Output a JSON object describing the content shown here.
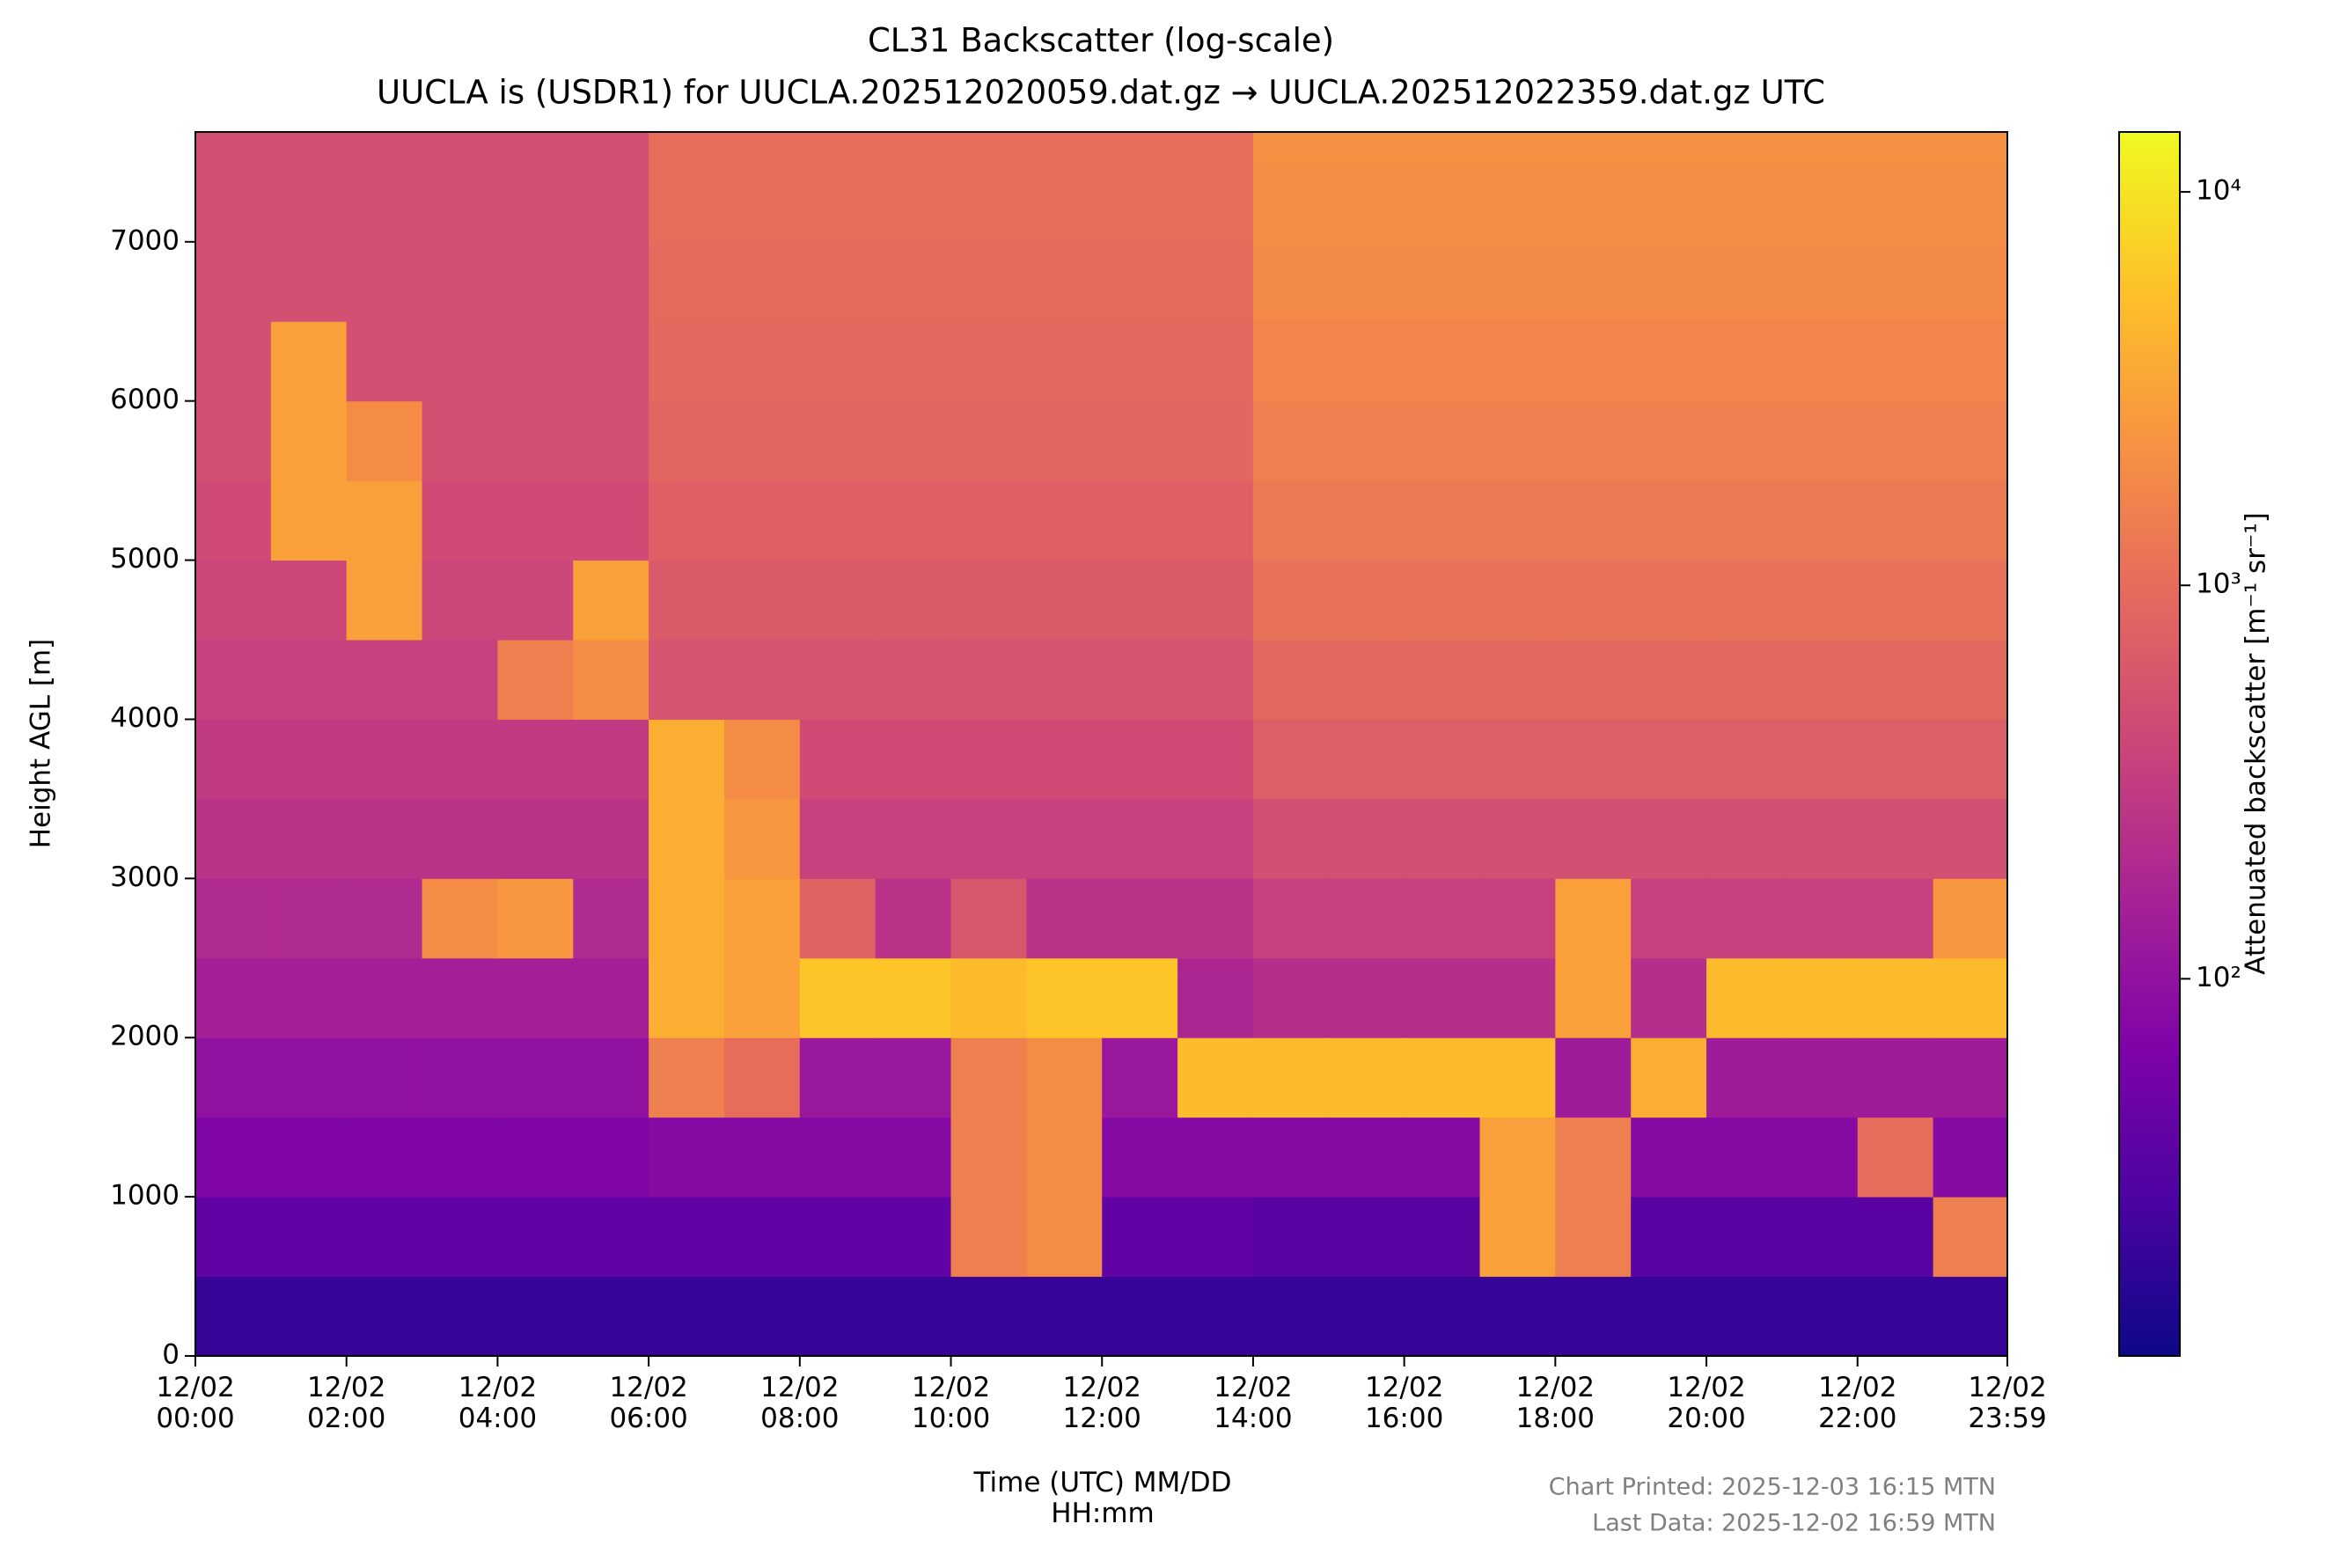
{
  "chart_data": {
    "type": "heatmap",
    "title": "CL31 Backscatter (log-scale)",
    "subtitle": "UUCLA is (USDR1) for UUCLA.202512020059.dat.gz → UUCLA.202512022359.dat.gz UTC",
    "x_label": "Time (UTC) MM/DD\nHH:mm",
    "y_label": "Height AGL [m]",
    "colorbar_label": "Attenuated backscatter [m⁻¹ sr⁻¹]",
    "annotations": [
      "Chart Printed: 2025-12-03 16:15 MTN",
      "Last Data: 2025-12-02 16:59 MTN"
    ],
    "colormap": "plasma",
    "color_scale": "log",
    "xlim": [
      0,
      23.983
    ],
    "xticks": [
      {
        "value": 0,
        "label": "12/02\n00:00"
      },
      {
        "value": 2,
        "label": "12/02\n02:00"
      },
      {
        "value": 4,
        "label": "12/02\n04:00"
      },
      {
        "value": 6,
        "label": "12/02\n06:00"
      },
      {
        "value": 8,
        "label": "12/02\n08:00"
      },
      {
        "value": 10,
        "label": "12/02\n10:00"
      },
      {
        "value": 12,
        "label": "12/02\n12:00"
      },
      {
        "value": 14,
        "label": "12/02\n14:00"
      },
      {
        "value": 16,
        "label": "12/02\n16:00"
      },
      {
        "value": 18,
        "label": "12/02\n18:00"
      },
      {
        "value": 20,
        "label": "12/02\n20:00"
      },
      {
        "value": 22,
        "label": "12/02\n22:00"
      },
      {
        "value": 23.983,
        "label": "12/02\n23:59"
      }
    ],
    "ylim": [
      0,
      7690
    ],
    "yticks": [
      0,
      1000,
      2000,
      3000,
      4000,
      5000,
      6000,
      7000
    ],
    "clim": [
      11,
      14200
    ],
    "cticks": [
      {
        "value": 100,
        "label": "10²"
      },
      {
        "value": 1000,
        "label": "10³"
      },
      {
        "value": 10000,
        "label": "10⁴"
      }
    ],
    "x_bins": [
      0,
      1,
      2,
      3,
      4,
      5,
      6,
      7,
      8,
      9,
      10,
      11,
      12,
      13,
      14,
      15,
      16,
      17,
      18,
      19,
      20,
      21,
      22,
      23,
      24
    ],
    "y_bins": [
      0,
      500,
      1000,
      1500,
      2000,
      2500,
      3000,
      3500,
      4000,
      4500,
      5000,
      5500,
      6000,
      6500,
      7000,
      7500,
      8000
    ],
    "z": [
      [
        20,
        40,
        70,
        100,
        150,
        200,
        250,
        300,
        350,
        400,
        450,
        500,
        500,
        500,
        500,
        500
      ],
      [
        20,
        40,
        70,
        100,
        150,
        200,
        250,
        300,
        350,
        400,
        3000,
        3000,
        3000,
        500,
        500,
        500
      ],
      [
        20,
        40,
        70,
        100,
        150,
        200,
        250,
        300,
        350,
        3000,
        3000,
        2000,
        500,
        500,
        500,
        500
      ],
      [
        20,
        40,
        70,
        100,
        150,
        2000,
        250,
        300,
        350,
        400,
        450,
        500,
        500,
        500,
        500,
        500
      ],
      [
        20,
        40,
        70,
        100,
        150,
        2500,
        250,
        300,
        1500,
        400,
        450,
        500,
        500,
        500,
        500,
        500
      ],
      [
        20,
        40,
        70,
        100,
        150,
        200,
        250,
        300,
        2000,
        3000,
        450,
        500,
        500,
        500,
        500,
        500
      ],
      [
        20,
        40,
        80,
        1500,
        4000,
        4000,
        4000,
        4000,
        550,
        650,
        750,
        850,
        900,
        950,
        1000,
        1000
      ],
      [
        20,
        40,
        80,
        1000,
        3000,
        3000,
        2500,
        2000,
        550,
        650,
        750,
        850,
        900,
        950,
        1000,
        1000
      ],
      [
        20,
        40,
        80,
        120,
        6000,
        800,
        350,
        450,
        550,
        650,
        750,
        850,
        900,
        950,
        1000,
        1000
      ],
      [
        20,
        40,
        80,
        120,
        6000,
        250,
        350,
        450,
        550,
        650,
        750,
        850,
        900,
        950,
        1000,
        1000
      ],
      [
        20,
        1500,
        1500,
        1500,
        5000,
        600,
        350,
        450,
        550,
        650,
        750,
        850,
        900,
        950,
        1000,
        1000
      ],
      [
        20,
        2000,
        2000,
        2000,
        6000,
        250,
        350,
        450,
        550,
        650,
        750,
        850,
        900,
        950,
        1000,
        1000
      ],
      [
        20,
        40,
        80,
        120,
        6000,
        250,
        350,
        450,
        550,
        650,
        750,
        850,
        900,
        950,
        1000,
        1000
      ],
      [
        20,
        40,
        80,
        5000,
        180,
        250,
        350,
        450,
        550,
        650,
        750,
        850,
        900,
        950,
        1000,
        1000
      ],
      [
        20,
        35,
        80,
        5000,
        220,
        350,
        500,
        700,
        900,
        1100,
        1300,
        1500,
        1700,
        1900,
        2100,
        2200
      ],
      [
        20,
        35,
        80,
        5000,
        220,
        350,
        500,
        700,
        900,
        1100,
        1300,
        1500,
        1700,
        1900,
        2100,
        2200
      ],
      [
        20,
        35,
        80,
        5000,
        220,
        350,
        500,
        700,
        900,
        1100,
        1300,
        1500,
        1700,
        1900,
        2100,
        2200
      ],
      [
        20,
        3000,
        3000,
        5000,
        220,
        350,
        500,
        700,
        900,
        1100,
        1300,
        1500,
        1700,
        1900,
        2100,
        2200
      ],
      [
        20,
        1500,
        1500,
        130,
        3000,
        3000,
        500,
        700,
        900,
        1100,
        1300,
        1500,
        1700,
        1900,
        2100,
        2200
      ],
      [
        20,
        35,
        80,
        4000,
        220,
        350,
        500,
        700,
        900,
        1100,
        1300,
        1500,
        1700,
        1900,
        2100,
        2200
      ],
      [
        20,
        35,
        80,
        130,
        5000,
        350,
        500,
        700,
        900,
        1100,
        1300,
        1500,
        1700,
        1900,
        2100,
        2200
      ],
      [
        20,
        35,
        80,
        130,
        5000,
        350,
        500,
        700,
        900,
        1100,
        1300,
        1500,
        1700,
        1900,
        2100,
        2200
      ],
      [
        20,
        35,
        1000,
        130,
        5000,
        350,
        500,
        700,
        900,
        1100,
        1300,
        1500,
        1700,
        1900,
        2100,
        2200
      ],
      [
        20,
        1500,
        80,
        130,
        5000,
        2500,
        500,
        700,
        900,
        1100,
        1300,
        1500,
        1700,
        1900,
        2100,
        2200
      ]
    ]
  }
}
